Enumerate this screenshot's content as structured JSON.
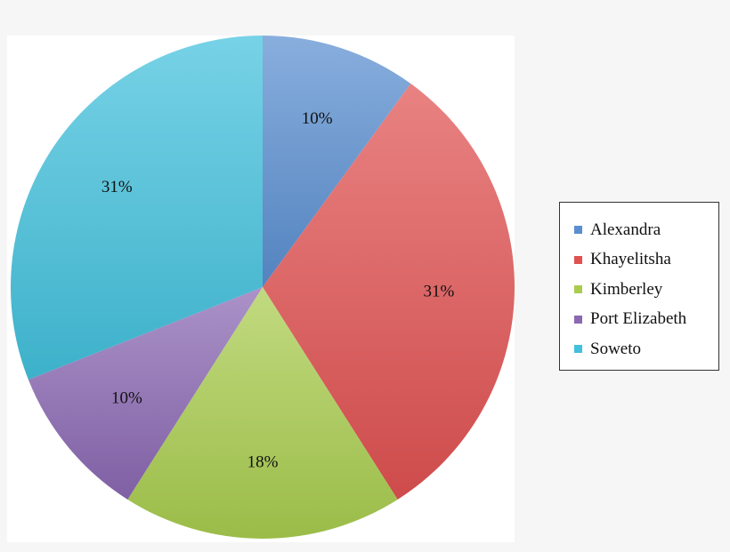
{
  "chart_data": {
    "type": "pie",
    "categories": [
      "Alexandra",
      "Khayelitsha",
      "Kimberley",
      "Port Elizabeth",
      "Soweto"
    ],
    "values": [
      10,
      31,
      18,
      10,
      31
    ],
    "data_labels": [
      "10%",
      "31%",
      "18%",
      "10%",
      "31%"
    ],
    "colors": [
      "#5a8ed0",
      "#e05252",
      "#a9cc4e",
      "#8a68b2",
      "#42c0dc"
    ],
    "start": "12 o'clock",
    "direction": "clockwise",
    "legend_position": "right"
  }
}
